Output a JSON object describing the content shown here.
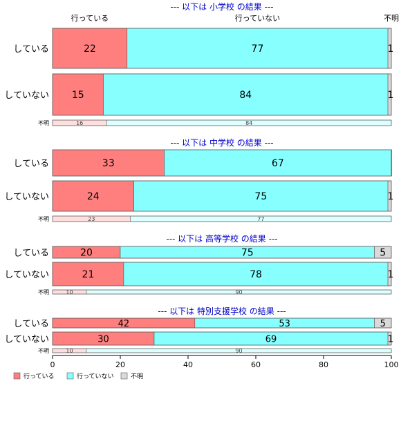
{
  "colors": {
    "yes": "#ff7f7f",
    "no": "#88ffff",
    "unknown": "#d9d9d9",
    "yes_faded": "#ffdede",
    "no_faded": "#dcffff",
    "unknown_faded": "#f2f2f2",
    "section_title": "#0000cc"
  },
  "column_headers": [
    "行っている",
    "行っていない",
    "不明"
  ],
  "chart_data": {
    "type": "bar",
    "orientation": "horizontal-stacked-percent",
    "xlim": [
      0,
      100
    ],
    "xticks": [
      0,
      20,
      40,
      60,
      80,
      100
    ],
    "legend": {
      "position": "bottom-left",
      "items": [
        "行っている",
        "行っていない",
        "不明"
      ]
    },
    "series_names": [
      "行っている",
      "行っていない",
      "不明"
    ],
    "sections": [
      {
        "title": "--- 以下は 小学校 の結果 ---",
        "rows": [
          {
            "label": "している",
            "values": [
              22,
              77,
              1
            ],
            "value_labels": [
              "22",
              "77",
              "1"
            ]
          },
          {
            "label": "していない",
            "values": [
              15,
              84,
              1
            ],
            "value_labels": [
              "15",
              "84",
              "1"
            ]
          },
          {
            "label": "不明",
            "values": [
              16,
              84,
              0
            ],
            "value_labels": [
              "16",
              "84",
              ""
            ]
          }
        ]
      },
      {
        "title": "--- 以下は 中学校 の結果 ---",
        "rows": [
          {
            "label": "している",
            "values": [
              33,
              67,
              0.4
            ],
            "value_labels": [
              "33",
              "67",
              ""
            ]
          },
          {
            "label": "していない",
            "values": [
              24,
              75,
              1
            ],
            "value_labels": [
              "24",
              "75",
              "1"
            ]
          },
          {
            "label": "不明",
            "values": [
              23,
              77,
              0
            ],
            "value_labels": [
              "23",
              "77",
              ""
            ]
          }
        ]
      },
      {
        "title": "--- 以下は 高等学校 の結果 ---",
        "rows": [
          {
            "label": "している",
            "values": [
              20,
              75,
              5
            ],
            "value_labels": [
              "20",
              "75",
              "5"
            ]
          },
          {
            "label": "していない",
            "values": [
              21,
              78,
              1
            ],
            "value_labels": [
              "21",
              "78",
              "1"
            ]
          },
          {
            "label": "不明",
            "values": [
              10,
              90,
              0
            ],
            "value_labels": [
              "10",
              "90",
              ""
            ]
          }
        ]
      },
      {
        "title": "--- 以下は 特別支援学校 の結果 ---",
        "rows": [
          {
            "label": "している",
            "values": [
              42,
              53,
              5
            ],
            "value_labels": [
              "42",
              "53",
              "5"
            ]
          },
          {
            "label": "していない",
            "values": [
              30,
              69,
              1
            ],
            "value_labels": [
              "30",
              "69",
              "1"
            ]
          },
          {
            "label": "不明",
            "values": [
              10,
              90,
              0
            ],
            "value_labels": [
              "10",
              "90",
              ""
            ]
          }
        ]
      }
    ]
  }
}
